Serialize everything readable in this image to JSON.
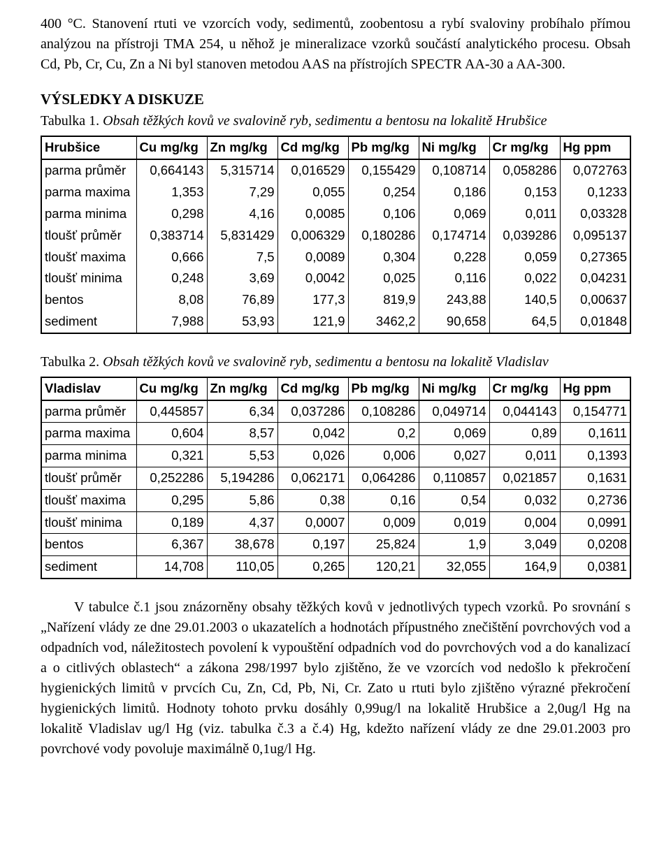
{
  "para1": "400 °C. Stanovení rtuti ve vzorcích vody, sedimentů, zoobentosu a rybí svaloviny probíhalo přímou analýzou na přístroji TMA 254, u něhož je mineralizace vzorků součástí analytického procesu. Obsah Cd, Pb, Cr, Cu, Zn a Ni byl stanoven metodou AAS na přístrojích SPECTR AA-30 a AA-300.",
  "heading": "VÝSLEDKY A DISKUZE",
  "caption1_lead": "Tabulka 1.",
  "caption1_rest": " Obsah těžkých kovů ve svalovině ryb, sedimentu a bentosu na lokalitě Hrubšice",
  "caption2_lead": "Tabulka 2.",
  "caption2_rest": " Obsah těžkých kovů ve svalovině ryb, sedimentu a bentosu na lokalitě Vladislav",
  "table1": {
    "columns": [
      "Hrubšice",
      "Cu mg/kg",
      "Zn mg/kg",
      "Cd mg/kg",
      "Pb mg/kg",
      "Ni mg/kg",
      "Cr mg/kg",
      "Hg ppm"
    ],
    "rows": [
      [
        "parma průměr",
        "0,664143",
        "5,315714",
        "0,016529",
        "0,155429",
        "0,108714",
        "0,058286",
        "0,072763"
      ],
      [
        "parma maxima",
        "1,353",
        "7,29",
        "0,055",
        "0,254",
        "0,186",
        "0,153",
        "0,1233"
      ],
      [
        "parma minima",
        "0,298",
        "4,16",
        "0,0085",
        "0,106",
        "0,069",
        "0,011",
        "0,03328"
      ],
      [
        "tloušť průměr",
        "0,383714",
        "5,831429",
        "0,006329",
        "0,180286",
        "0,174714",
        "0,039286",
        "0,095137"
      ],
      [
        "tloušť maxima",
        "0,666",
        "7,5",
        "0,0089",
        "0,304",
        "0,228",
        "0,059",
        "0,27365"
      ],
      [
        "tloušť minima",
        "0,248",
        "3,69",
        "0,0042",
        "0,025",
        "0,116",
        "0,022",
        "0,04231"
      ],
      [
        "bentos",
        "8,08",
        "76,89",
        "177,3",
        "819,9",
        "243,88",
        "140,5",
        "0,00637"
      ],
      [
        "sediment",
        "7,988",
        "53,93",
        "121,9",
        "3462,2",
        "90,658",
        "64,5",
        "0,01848"
      ]
    ]
  },
  "table2": {
    "columns": [
      "Vladislav",
      "Cu mg/kg",
      "Zn mg/kg",
      "Cd mg/kg",
      "Pb mg/kg",
      "Ni mg/kg",
      "Cr mg/kg",
      "Hg ppm"
    ],
    "rows": [
      [
        "parma průměr",
        "0,445857",
        "6,34",
        "0,037286",
        "0,108286",
        "0,049714",
        "0,044143",
        "0,154771"
      ],
      [
        "parma maxima",
        "0,604",
        "8,57",
        "0,042",
        "0,2",
        "0,069",
        "0,89",
        "0,1611"
      ],
      [
        "parma minima",
        "0,321",
        "5,53",
        "0,026",
        "0,006",
        "0,027",
        "0,011",
        "0,1393"
      ],
      [
        "tloušť průměr",
        "0,252286",
        "5,194286",
        "0,062171",
        "0,064286",
        "0,110857",
        "0,021857",
        "0,1631"
      ],
      [
        "tloušť maxima",
        "0,295",
        "5,86",
        "0,38",
        "0,16",
        "0,54",
        "0,032",
        "0,2736"
      ],
      [
        "tloušť minima",
        "0,189",
        "4,37",
        "0,0007",
        "0,009",
        "0,019",
        "0,004",
        "0,0991"
      ],
      [
        "bentos",
        "6,367",
        "38,678",
        "0,197",
        "25,824",
        "1,9",
        "3,049",
        "0,0208"
      ],
      [
        "sediment",
        "14,708",
        "110,05",
        "0,265",
        "120,21",
        "32,055",
        "164,9",
        "0,0381"
      ]
    ]
  },
  "para2": "V tabulce č.1 jsou znázorněny obsahy těžkých kovů v jednotlivých typech vzorků. Po srovnání s „Nařízení vlády ze dne 29.01.2003 o ukazatelích a hodnotách přípustného znečištění povrchových vod a odpadních vod, náležitostech povolení k vypouštění odpadních vod do povrchových vod a do kanalizací a o citlivých oblastech“ a zákona 298/1997 bylo zjištěno, že ve vzorcích vod nedošlo k překročení hygienických limitů v prvcích Cu, Zn, Cd, Pb, Ni, Cr. Zato u rtuti bylo zjištěno výrazné překročení hygienických limitů. Hodnoty tohoto prvku dosáhly 0,99ug/l na lokalitě Hrubšice a 2,0ug/l Hg na lokalitě Vladislav ug/l Hg (viz. tabulka č.3 a č.4) Hg, kdežto nařízení vlády ze dne 29.01.2003 pro povrchové vody povoluje maximálně 0,1ug/l Hg."
}
